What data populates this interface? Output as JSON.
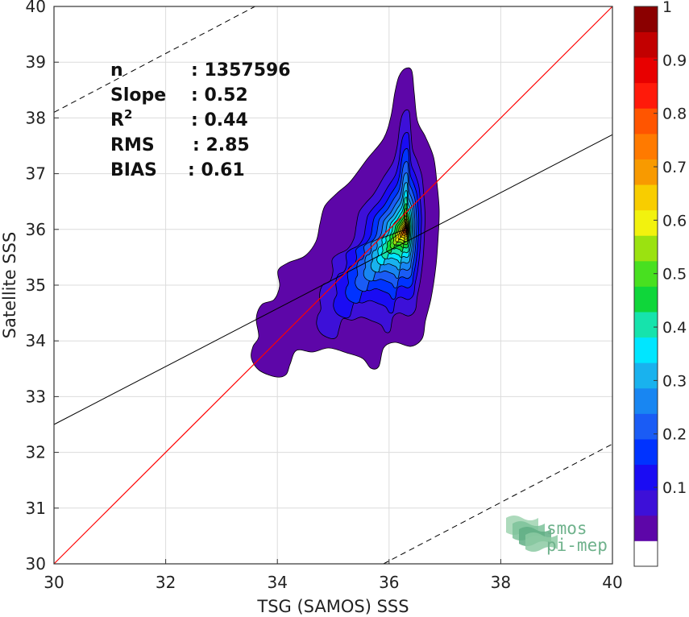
{
  "chart_data": {
    "type": "heatmap",
    "title": "",
    "xlabel": "TSG (SAMOS) SSS",
    "ylabel": "Satellite SSS",
    "xlim": [
      30,
      40
    ],
    "ylim": [
      30,
      40
    ],
    "xticks": [
      "30",
      "32",
      "34",
      "36",
      "38",
      "40"
    ],
    "yticks": [
      "30",
      "31",
      "32",
      "33",
      "34",
      "35",
      "36",
      "37",
      "38",
      "39",
      "40"
    ],
    "grid": true,
    "stats": [
      {
        "label": "n",
        "value": ": 1357596"
      },
      {
        "label": "Slope",
        "value": ": 0.52"
      },
      {
        "label": "R",
        "sup": "2",
        "value": ": 0.44"
      },
      {
        "label": "RMS",
        "value": ": 2.85"
      },
      {
        "label": "BIAS",
        "value": ": 0.61"
      }
    ],
    "lines": {
      "one_to_one": {
        "x": [
          30,
          40
        ],
        "y": [
          30,
          40
        ],
        "color": "#ff0000"
      },
      "regression": {
        "x": [
          30,
          40
        ],
        "y": [
          32.5,
          37.7
        ],
        "color": "#000000"
      },
      "upper_bound": {
        "x": [
          30,
          33.6
        ],
        "y": [
          38.1,
          40
        ],
        "style": "dashed"
      },
      "lower_bound": {
        "x": [
          35.9,
          40
        ],
        "y": [
          30,
          32.15
        ],
        "style": "dashed"
      }
    },
    "density_peak": {
      "x": 36.3,
      "y": 36.0
    },
    "colorbar": {
      "ticks": [
        "0.1",
        "0.2",
        "0.3",
        "0.4",
        "0.5",
        "0.6",
        "0.7",
        "0.8",
        "0.9",
        "1"
      ],
      "levels": [
        "#ffffff",
        "#5d06a8",
        "#3d10d8",
        "#1a0cf3",
        "#0033ff",
        "#1a5cf5",
        "#1886f2",
        "#19b2ee",
        "#00e6ff",
        "#16e3ac",
        "#0fd63a",
        "#48e020",
        "#9be210",
        "#f2f20e",
        "#f8cd00",
        "#f89a00",
        "#ff7a00",
        "#ff5500",
        "#ff1a0a",
        "#e80000",
        "#c20000",
        "#8b0000"
      ]
    }
  },
  "logo": {
    "line1": "smos",
    "line2": "pi-mep"
  }
}
